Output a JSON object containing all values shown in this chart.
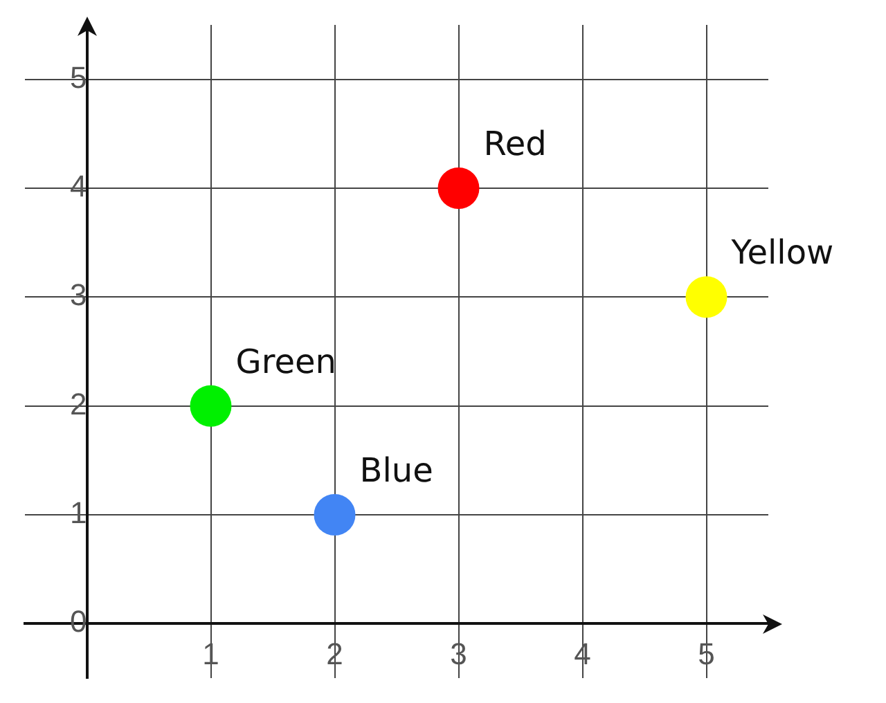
{
  "chart_data": {
    "type": "scatter",
    "xlim": [
      -0.5,
      5.5
    ],
    "ylim": [
      -0.5,
      5.5
    ],
    "xticks": [
      {
        "value": 0,
        "label": null
      },
      1,
      2,
      3,
      4,
      5
    ],
    "yticks": [
      0,
      1,
      2,
      3,
      4,
      5
    ],
    "grid": true,
    "legend": false,
    "marker": "circle",
    "series": [
      {
        "name": "Green",
        "color": "#00f000",
        "x": [
          1
        ],
        "values": [
          2
        ]
      },
      {
        "name": "Blue",
        "color": "#4285f4",
        "x": [
          2
        ],
        "values": [
          1
        ]
      },
      {
        "name": "Red",
        "color": "#ff0000",
        "x": [
          3
        ],
        "values": [
          4
        ]
      },
      {
        "name": "Yellow",
        "color": "#ffff00",
        "x": [
          5
        ],
        "values": [
          3
        ]
      }
    ]
  }
}
